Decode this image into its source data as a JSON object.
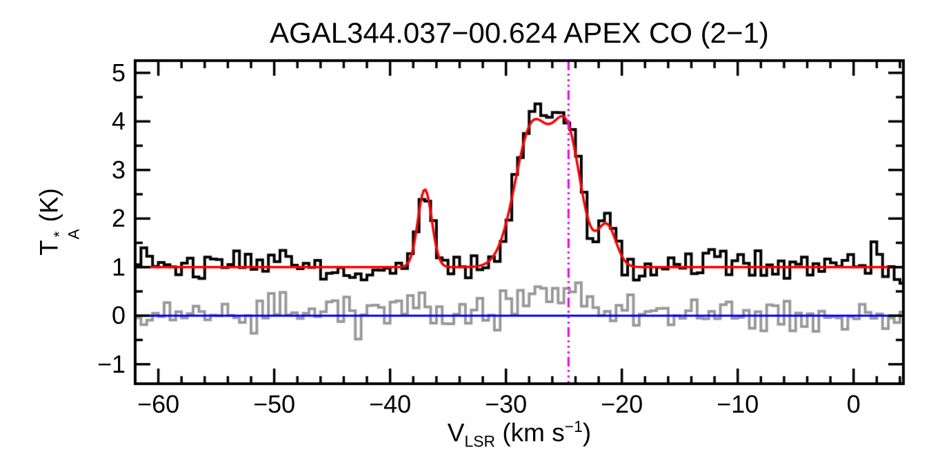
{
  "figure": {
    "title": "AGAL344.037−00.624  APEX CO (2−1)",
    "xlabel": {
      "base": "V",
      "sub": "LSR",
      "mid": " (km s",
      "sup": "−1",
      "close": ")"
    },
    "ylabel": {
      "base": "T",
      "sup": "*",
      "sub": "A",
      "rest": " (K)"
    }
  },
  "chart_data": {
    "type": "line",
    "subtype": "spectrum-histogram-with-gaussian-fit",
    "title": "AGAL344.037−00.624  APEX CO (2−1)",
    "xlabel": "V_LSR (km s^−1)",
    "ylabel": "T_A^* (K)",
    "xlim": [
      -62,
      4.3
    ],
    "ylim": [
      -1.4,
      5.25
    ],
    "x_ticks": [
      -60,
      -50,
      -40,
      -30,
      -20,
      -10,
      0
    ],
    "x_tick_labels": [
      "−60",
      "−50",
      "−40",
      "−30",
      "−20",
      "−10",
      "0"
    ],
    "x_minor_step": 2,
    "y_ticks": [
      -1,
      0,
      1,
      2,
      3,
      4,
      5
    ],
    "y_tick_labels": [
      "−1",
      "0",
      "1",
      "2",
      "3",
      "4",
      "5"
    ],
    "y_minor_step": 0.5,
    "grid": false,
    "legend": "none",
    "channel_width_kms": 0.5,
    "rng_seed": 20240613,
    "series": [
      {
        "name": "observed-spectrum",
        "type": "histogram",
        "color": "#000000",
        "baseline": 1.0,
        "noise_rms": 0.2
      },
      {
        "name": "gaussian-fit",
        "type": "curve",
        "color": "#FF0000",
        "baseline": 1.0,
        "components": [
          {
            "amp": 1.6,
            "center": -37.0,
            "sigma": 0.6
          },
          {
            "amp": 2.9,
            "center": -27.7,
            "sigma": 1.5
          },
          {
            "amp": 2.6,
            "center": -24.7,
            "sigma": 1.2
          },
          {
            "amp": 0.85,
            "center": -21.3,
            "sigma": 0.8
          }
        ]
      },
      {
        "name": "residual-spectrum",
        "type": "histogram",
        "color": "#9A9A9A",
        "baseline": 0.0,
        "noise_rms": 0.2,
        "components": [
          {
            "amp": 0.55,
            "center": -26.0,
            "sigma": 2.3
          },
          {
            "amp": 0.2,
            "center": -37.0,
            "sigma": 1.0
          }
        ]
      },
      {
        "name": "zero-line",
        "type": "hline",
        "color": "#0000FF",
        "y": 0
      },
      {
        "name": "velocity-marker",
        "type": "vline",
        "color": "#FF00FF",
        "x": -24.6,
        "dash": "dash-dot-dot-dot"
      }
    ],
    "peaks": [
      {
        "center_kms": -37.0,
        "peak_K": 2.6
      },
      {
        "center_kms": -27.7,
        "peak_K": 4.05
      },
      {
        "center_kms": -24.7,
        "peak_K": 4.0
      },
      {
        "center_kms": -21.3,
        "peak_K": 1.9
      }
    ]
  }
}
